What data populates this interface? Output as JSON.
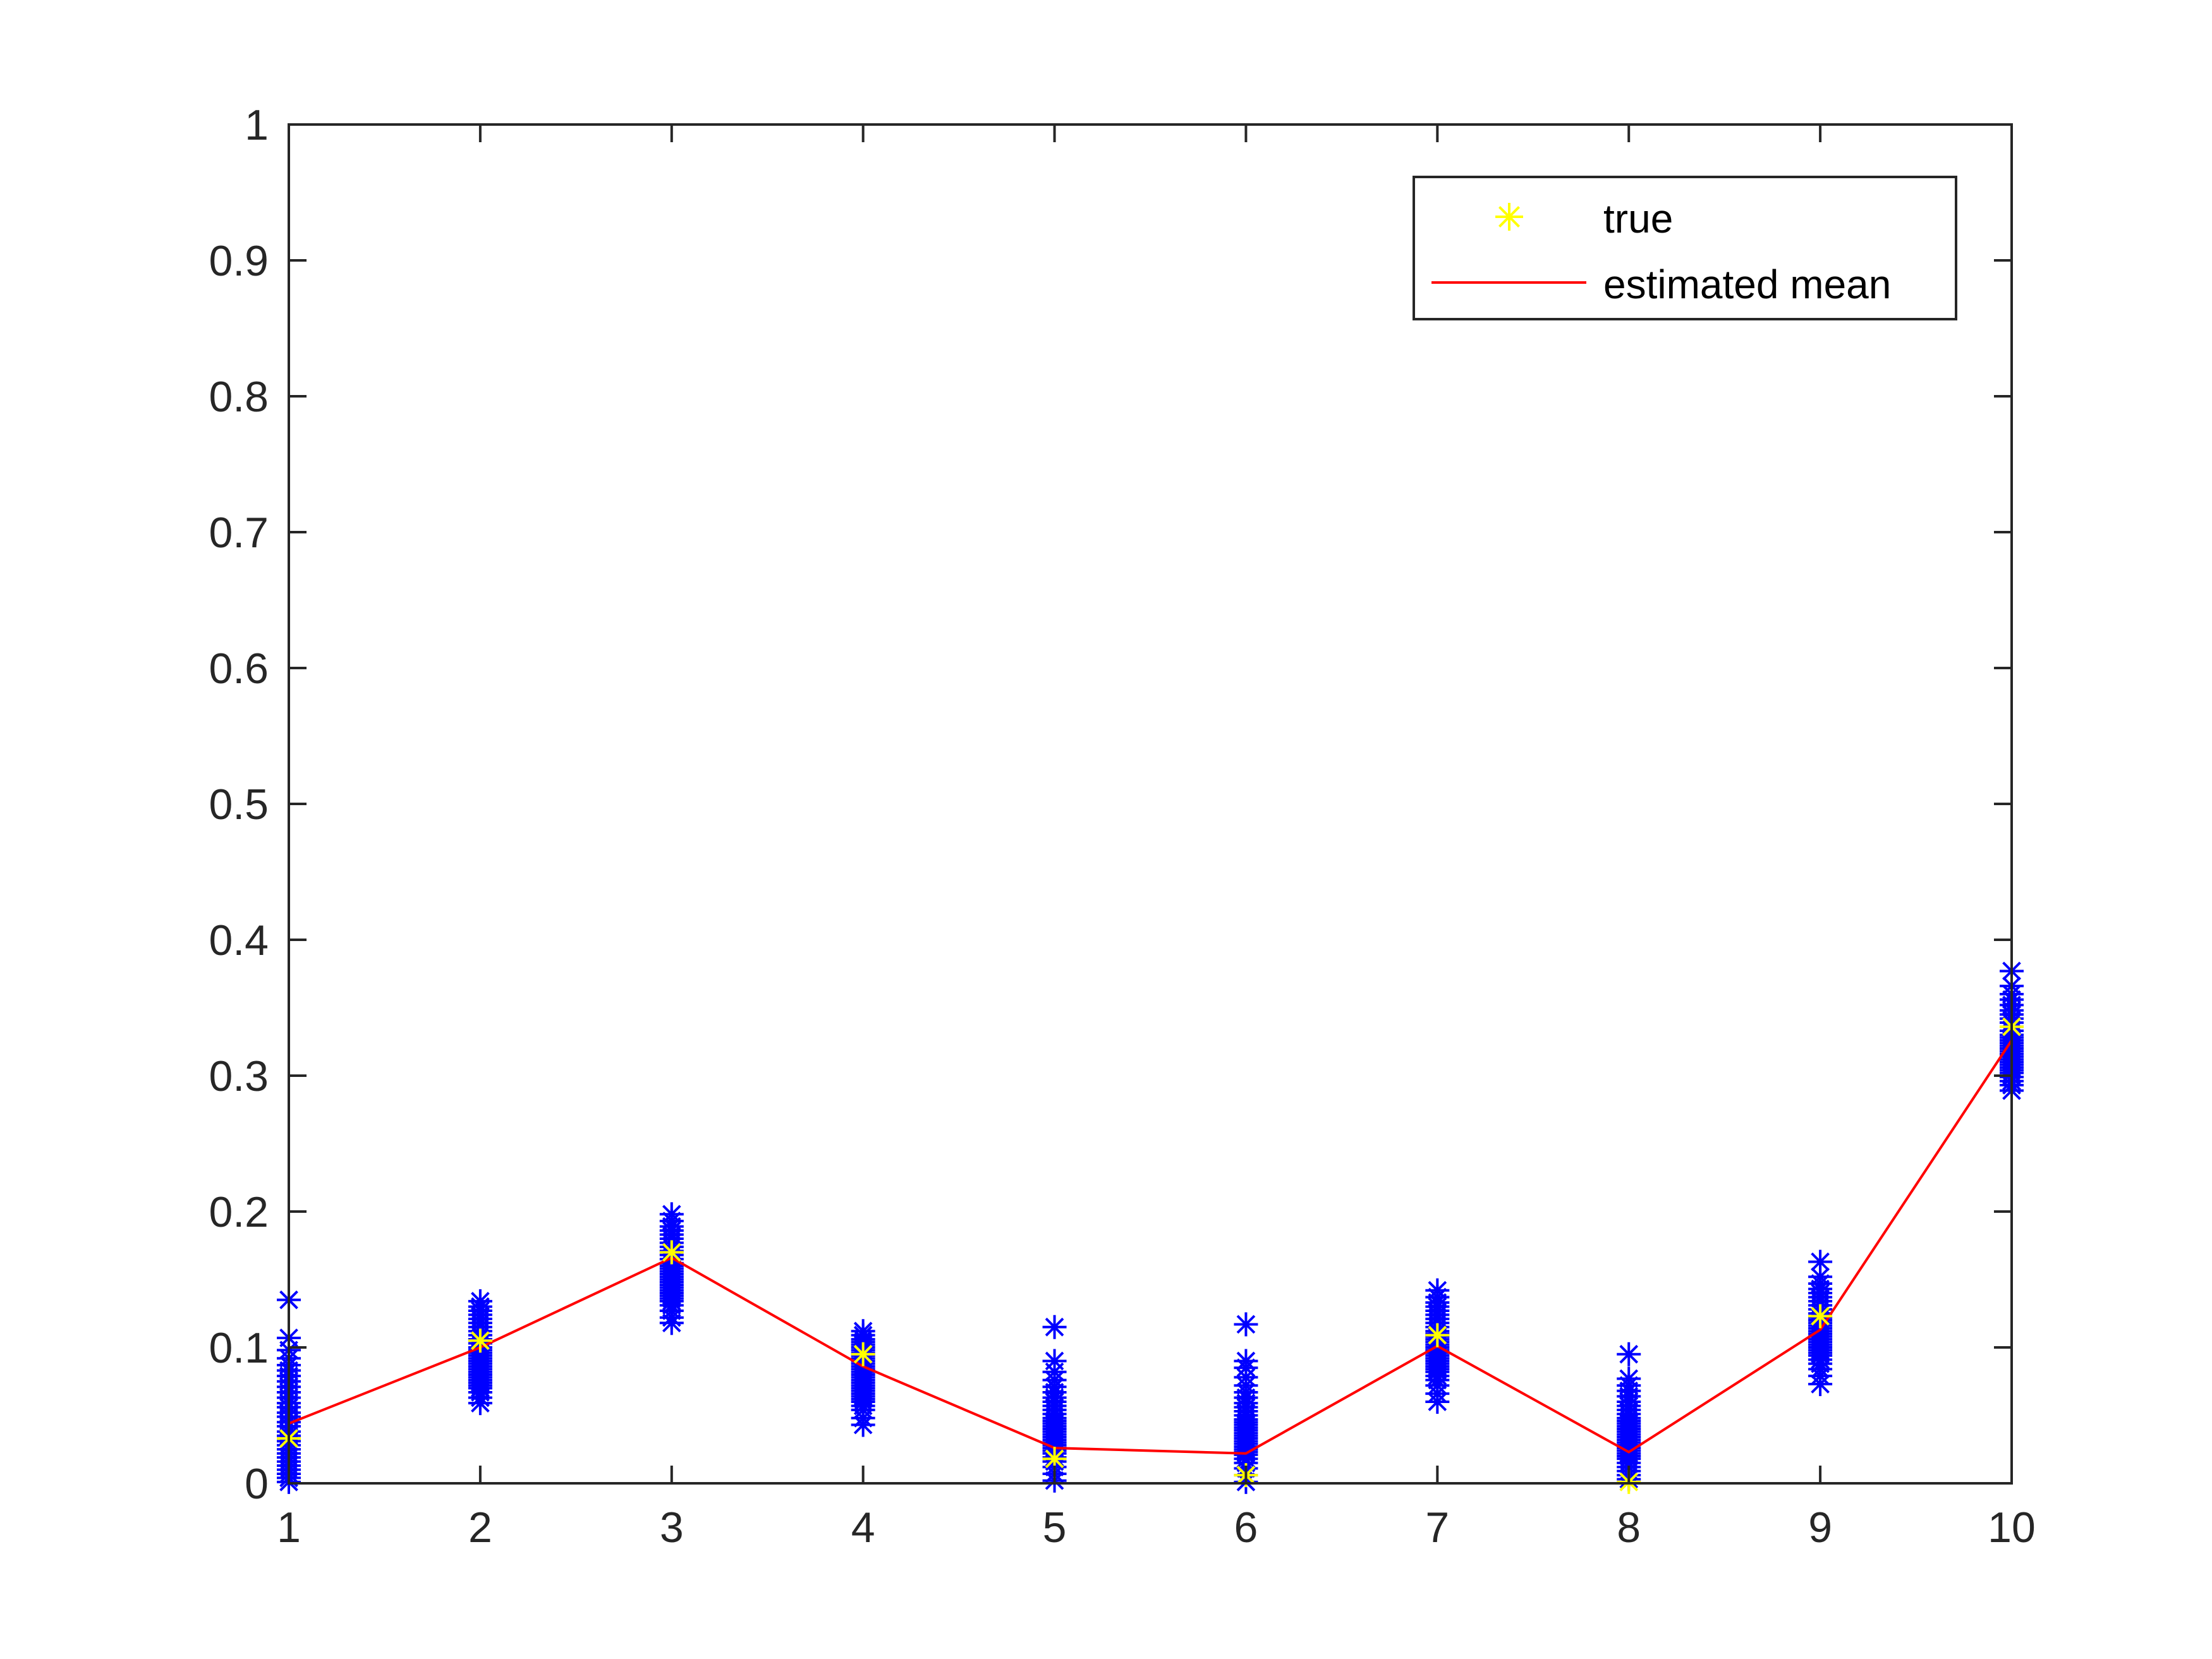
{
  "chart_data": {
    "type": "scatter",
    "title": "",
    "xlabel": "",
    "ylabel": "",
    "xlim": [
      1,
      10
    ],
    "ylim": [
      0,
      1
    ],
    "x_ticks": [
      "1",
      "2",
      "3",
      "4",
      "5",
      "6",
      "7",
      "8",
      "9",
      "10"
    ],
    "y_ticks": [
      "0",
      "0.1",
      "0.2",
      "0.3",
      "0.4",
      "0.5",
      "0.6",
      "0.7",
      "0.8",
      "0.9",
      "1"
    ],
    "grid": false,
    "legend_position": "top-right",
    "categories": [
      1,
      2,
      3,
      4,
      5,
      6,
      7,
      8,
      9,
      10
    ],
    "series": [
      {
        "name": "true",
        "marker": "asterisk",
        "color": "#ffff00",
        "values": [
          0.033,
          0.105,
          0.17,
          0.095,
          0.018,
          0.006,
          0.109,
          0.001,
          0.123,
          0.336
        ]
      },
      {
        "name": "estimated mean",
        "marker": "line",
        "color": "#ff0000",
        "values": [
          0.044,
          0.1,
          0.166,
          0.086,
          0.026,
          0.022,
          0.101,
          0.023,
          0.113,
          0.326
        ]
      },
      {
        "marker": "asterisk",
        "color": "#0000ff",
        "x": [
          1,
          1,
          1,
          1,
          1,
          1,
          1,
          1,
          1,
          1,
          1,
          1,
          1,
          1,
          1,
          1,
          1,
          1,
          1,
          1,
          1,
          1,
          1,
          1,
          1,
          1,
          1,
          1,
          1,
          1,
          2,
          2,
          2,
          2,
          2,
          2,
          2,
          2,
          2,
          2,
          2,
          2,
          2,
          2,
          2,
          2,
          2,
          2,
          2,
          2,
          2,
          2,
          2,
          2,
          2,
          2,
          2,
          2,
          2,
          2,
          3,
          3,
          3,
          3,
          3,
          3,
          3,
          3,
          3,
          3,
          3,
          3,
          3,
          3,
          3,
          3,
          3,
          3,
          3,
          3,
          3,
          3,
          3,
          3,
          3,
          3,
          3,
          3,
          3,
          3,
          4,
          4,
          4,
          4,
          4,
          4,
          4,
          4,
          4,
          4,
          4,
          4,
          4,
          4,
          4,
          4,
          4,
          4,
          4,
          4,
          4,
          4,
          4,
          4,
          4,
          4,
          4,
          4,
          4,
          4,
          5,
          5,
          5,
          5,
          5,
          5,
          5,
          5,
          5,
          5,
          5,
          5,
          5,
          5,
          5,
          5,
          5,
          5,
          5,
          5,
          5,
          5,
          5,
          5,
          5,
          5,
          5,
          5,
          5,
          5,
          6,
          6,
          6,
          6,
          6,
          6,
          6,
          6,
          6,
          6,
          6,
          6,
          6,
          6,
          6,
          6,
          6,
          6,
          6,
          6,
          6,
          6,
          6,
          6,
          6,
          6,
          6,
          6,
          6,
          6,
          7,
          7,
          7,
          7,
          7,
          7,
          7,
          7,
          7,
          7,
          7,
          7,
          7,
          7,
          7,
          7,
          7,
          7,
          7,
          7,
          7,
          7,
          7,
          7,
          7,
          7,
          7,
          7,
          7,
          7,
          8,
          8,
          8,
          8,
          8,
          8,
          8,
          8,
          8,
          8,
          8,
          8,
          8,
          8,
          8,
          8,
          8,
          8,
          8,
          8,
          8,
          8,
          8,
          8,
          8,
          8,
          8,
          8,
          8,
          8,
          9,
          9,
          9,
          9,
          9,
          9,
          9,
          9,
          9,
          9,
          9,
          9,
          9,
          9,
          9,
          9,
          9,
          9,
          9,
          9,
          9,
          9,
          9,
          9,
          9,
          9,
          9,
          9,
          9,
          9,
          10,
          10,
          10,
          10,
          10,
          10,
          10,
          10,
          10,
          10,
          10,
          10,
          10,
          10,
          10,
          10,
          10,
          10,
          10,
          10,
          10,
          10,
          10,
          10,
          10,
          10,
          10,
          10,
          10,
          10
        ],
        "y": [
          0.135,
          0.107,
          0.098,
          0.092,
          0.087,
          0.083,
          0.079,
          0.075,
          0.071,
          0.067,
          0.063,
          0.059,
          0.056,
          0.052,
          0.049,
          0.045,
          0.042,
          0.038,
          0.035,
          0.031,
          0.028,
          0.025,
          0.022,
          0.019,
          0.016,
          0.013,
          0.01,
          0.007,
          0.004,
          0.001,
          0.134,
          0.13,
          0.127,
          0.124,
          0.121,
          0.118,
          0.115,
          0.112,
          0.109,
          0.106,
          0.103,
          0.1,
          0.098,
          0.096,
          0.094,
          0.092,
          0.09,
          0.088,
          0.086,
          0.084,
          0.082,
          0.08,
          0.078,
          0.076,
          0.074,
          0.072,
          0.07,
          0.067,
          0.063,
          0.059,
          0.198,
          0.193,
          0.189,
          0.186,
          0.183,
          0.18,
          0.177,
          0.174,
          0.171,
          0.168,
          0.165,
          0.162,
          0.16,
          0.158,
          0.156,
          0.154,
          0.152,
          0.15,
          0.148,
          0.146,
          0.144,
          0.142,
          0.14,
          0.138,
          0.136,
          0.134,
          0.131,
          0.127,
          0.122,
          0.118,
          0.112,
          0.109,
          0.106,
          0.104,
          0.102,
          0.1,
          0.098,
          0.096,
          0.094,
          0.092,
          0.09,
          0.088,
          0.086,
          0.084,
          0.082,
          0.08,
          0.078,
          0.076,
          0.074,
          0.072,
          0.07,
          0.068,
          0.066,
          0.064,
          0.062,
          0.06,
          0.057,
          0.054,
          0.048,
          0.043,
          0.115,
          0.09,
          0.082,
          0.076,
          0.071,
          0.067,
          0.063,
          0.06,
          0.057,
          0.054,
          0.051,
          0.048,
          0.046,
          0.044,
          0.042,
          0.04,
          0.038,
          0.036,
          0.034,
          0.032,
          0.03,
          0.028,
          0.026,
          0.024,
          0.022,
          0.019,
          0.016,
          0.012,
          0.007,
          0.002,
          0.117,
          0.09,
          0.085,
          0.078,
          0.072,
          0.067,
          0.063,
          0.059,
          0.056,
          0.053,
          0.05,
          0.047,
          0.045,
          0.043,
          0.041,
          0.039,
          0.037,
          0.035,
          0.033,
          0.031,
          0.029,
          0.027,
          0.025,
          0.023,
          0.021,
          0.018,
          0.015,
          0.011,
          0.006,
          0.001,
          0.142,
          0.137,
          0.133,
          0.13,
          0.127,
          0.124,
          0.121,
          0.118,
          0.115,
          0.112,
          0.11,
          0.108,
          0.106,
          0.104,
          0.102,
          0.1,
          0.098,
          0.096,
          0.094,
          0.092,
          0.09,
          0.088,
          0.086,
          0.084,
          0.082,
          0.079,
          0.076,
          0.072,
          0.066,
          0.06,
          0.095,
          0.077,
          0.072,
          0.068,
          0.064,
          0.06,
          0.057,
          0.054,
          0.051,
          0.048,
          0.046,
          0.044,
          0.042,
          0.04,
          0.038,
          0.036,
          0.034,
          0.032,
          0.03,
          0.028,
          0.026,
          0.024,
          0.022,
          0.02,
          0.018,
          0.015,
          0.012,
          0.009,
          0.006,
          0.003,
          0.163,
          0.152,
          0.147,
          0.143,
          0.14,
          0.137,
          0.134,
          0.131,
          0.128,
          0.125,
          0.122,
          0.12,
          0.118,
          0.116,
          0.114,
          0.112,
          0.11,
          0.108,
          0.106,
          0.104,
          0.102,
          0.1,
          0.098,
          0.096,
          0.094,
          0.091,
          0.088,
          0.084,
          0.079,
          0.073,
          0.377,
          0.366,
          0.36,
          0.356,
          0.352,
          0.348,
          0.345,
          0.342,
          0.339,
          0.336,
          0.333,
          0.33,
          0.328,
          0.326,
          0.324,
          0.322,
          0.32,
          0.318,
          0.316,
          0.314,
          0.312,
          0.31,
          0.308,
          0.306,
          0.304,
          0.302,
          0.299,
          0.296,
          0.293,
          0.289
        ]
      }
    ]
  }
}
